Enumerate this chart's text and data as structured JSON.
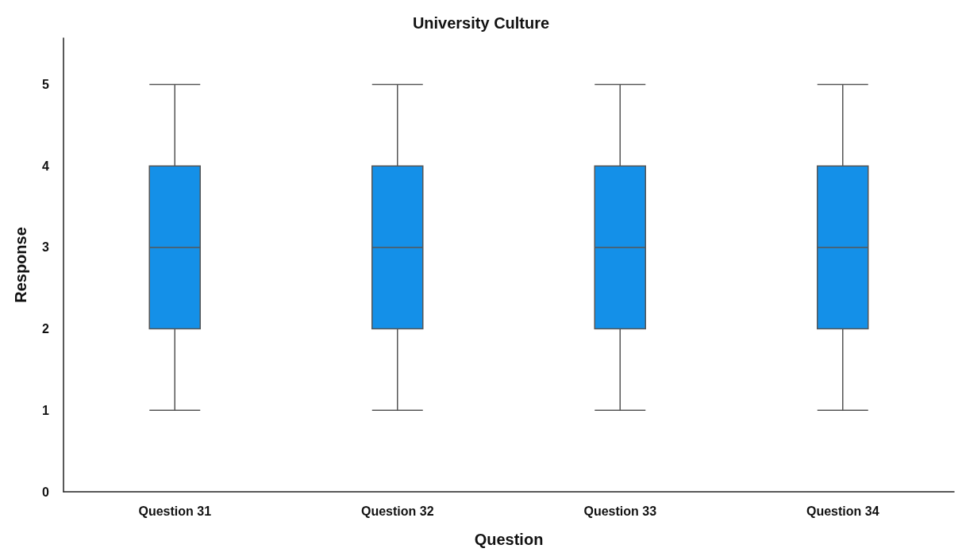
{
  "chart_data": {
    "type": "box",
    "title": "University Culture",
    "xlabel": "Question",
    "ylabel": "Response",
    "categories": [
      "Question 31",
      "Question 32",
      "Question 33",
      "Question 34"
    ],
    "series": [
      {
        "color": "#1490e8",
        "boxes": [
          {
            "low": 1,
            "q1": 2,
            "median": 3,
            "q3": 4,
            "high": 5
          },
          {
            "low": 1,
            "q1": 2,
            "median": 3,
            "q3": 4,
            "high": 5
          },
          {
            "low": 1,
            "q1": 2,
            "median": 3,
            "q3": 4,
            "high": 5
          },
          {
            "low": 1,
            "q1": 2,
            "median": 3,
            "q3": 4,
            "high": 5
          }
        ]
      }
    ],
    "ylim": [
      0,
      5.57
    ],
    "yticks": [
      0,
      1,
      2,
      3,
      4,
      5
    ],
    "grid": false
  }
}
